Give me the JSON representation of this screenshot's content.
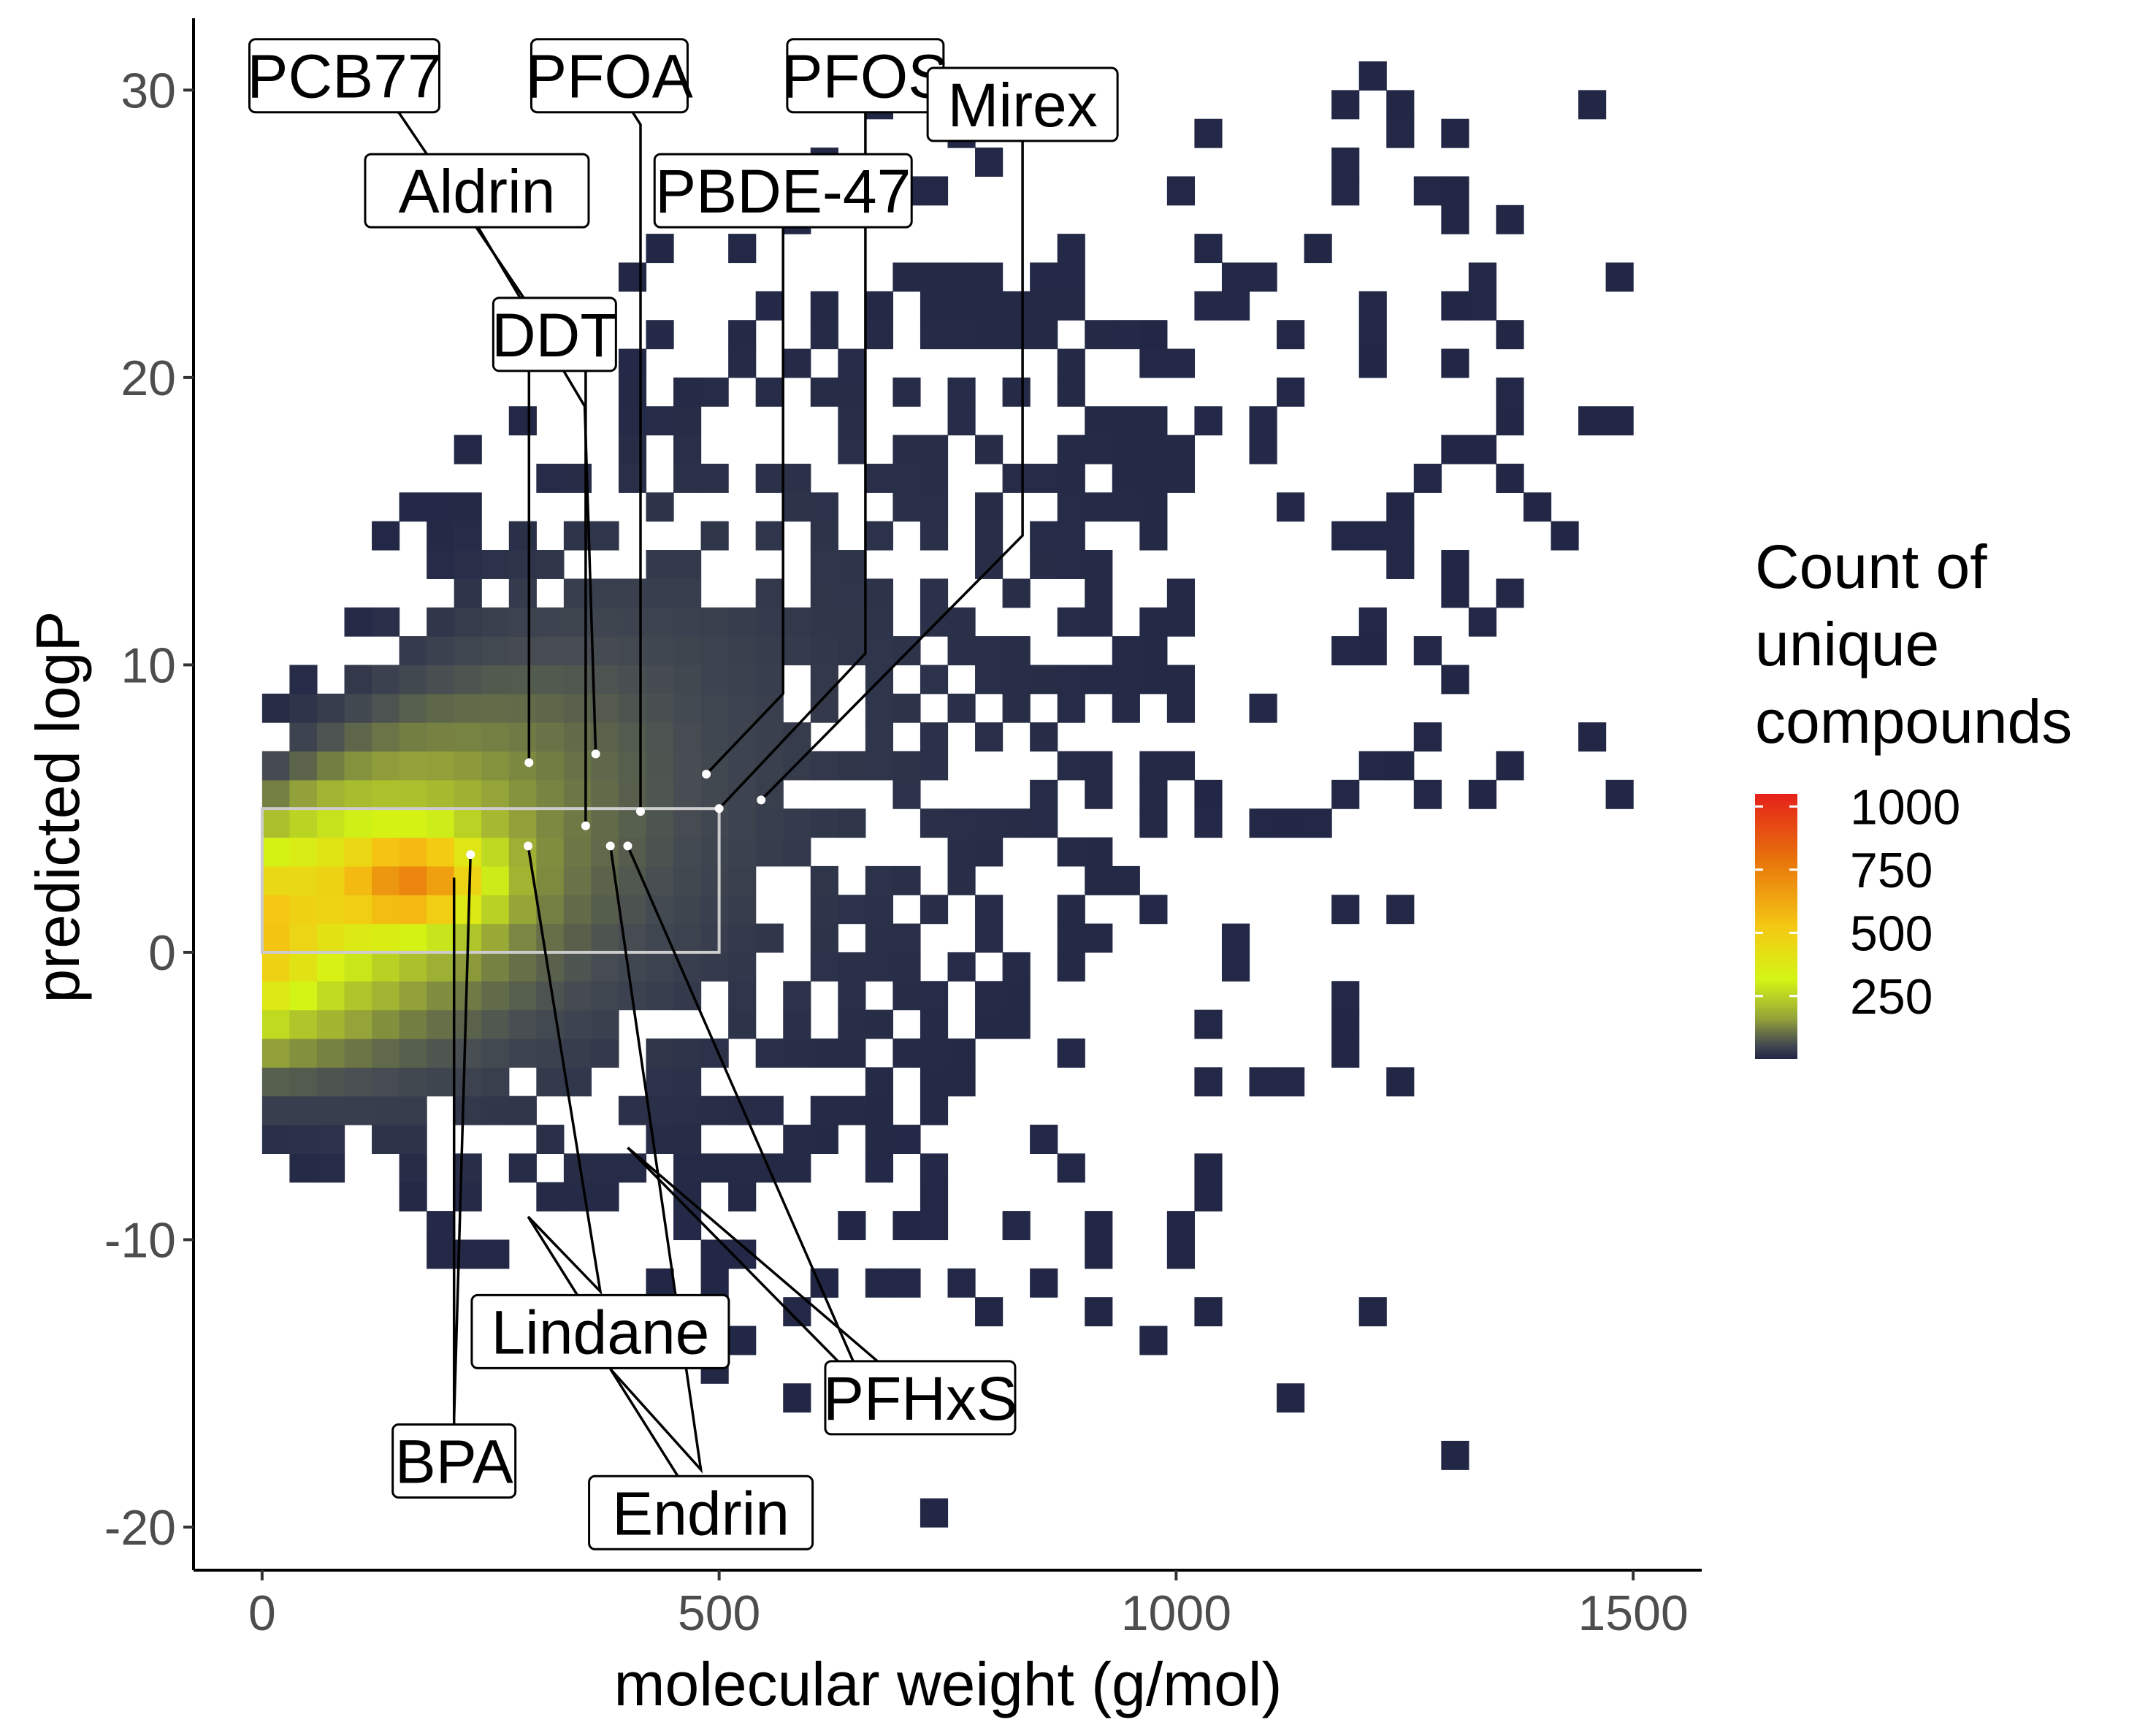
{
  "chart_data": {
    "type": "heatmap",
    "title": "",
    "xlabel": "molecular weight (g/mol)",
    "ylabel": "predicted logP",
    "xlim": [
      -75,
      1575
    ],
    "ylim": [
      -21.5,
      32.5
    ],
    "xticks": [
      0,
      500,
      1000,
      1500
    ],
    "xtick_labels": [
      "0",
      "500",
      "1000",
      "1500"
    ],
    "yticks": [
      -20,
      -10,
      0,
      10,
      20,
      30
    ],
    "ytick_labels": [
      "-20",
      "-10",
      "0",
      "10",
      "20",
      "30"
    ],
    "bin_width_x": 30,
    "bin_width_y": 1.0,
    "grid": false,
    "legend": {
      "title": [
        "Count of",
        "unique",
        "compounds"
      ],
      "position": "right",
      "ticks": [
        250,
        500,
        750,
        1000
      ],
      "tick_labels": [
        "250",
        "500",
        "750",
        "1000"
      ],
      "range": [
        1,
        1050
      ],
      "colors": [
        "#212745",
        "#474d52",
        "#9aaa36",
        "#d3f515",
        "#f5c813",
        "#e8740c",
        "#e5211a"
      ]
    },
    "highlight_box": {
      "x": [
        0,
        500
      ],
      "y": [
        0,
        5
      ],
      "color": "#cccccc"
    },
    "compounds": [
      {
        "name": "PCB77",
        "x": 292,
        "y": 6.6,
        "label_x": 90,
        "label_y": 30.5,
        "via": [
          [
            150,
            29.2
          ],
          [
            292,
            22.5
          ]
        ]
      },
      {
        "name": "Aldrin",
        "x": 365,
        "y": 6.9,
        "label_x": 235,
        "label_y": 26.5,
        "via": [
          [
            235,
            25.3
          ],
          [
            353,
            19.0
          ]
        ]
      },
      {
        "name": "DDT",
        "x": 354,
        "y": 4.4,
        "label_x": 320,
        "label_y": 21.5,
        "via": [
          [
            354,
            20.3
          ]
        ]
      },
      {
        "name": "PFOA",
        "x": 414,
        "y": 4.9,
        "label_x": 380,
        "label_y": 30.5,
        "via": [
          [
            414,
            28.8
          ],
          [
            414,
            15.0
          ]
        ]
      },
      {
        "name": "PBDE-47",
        "x": 486,
        "y": 6.2,
        "label_x": 570,
        "label_y": 26.5,
        "via": [
          [
            570,
            25.3
          ],
          [
            570,
            9.0
          ]
        ]
      },
      {
        "name": "PFOS",
        "x": 500,
        "y": 5.0,
        "label_x": 660,
        "label_y": 30.5,
        "via": [
          [
            660,
            29.2
          ],
          [
            660,
            10.4
          ]
        ]
      },
      {
        "name": "Mirex",
        "x": 546,
        "y": 5.3,
        "label_x": 832,
        "label_y": 29.5,
        "via": [
          [
            832,
            28.0
          ],
          [
            832,
            14.5
          ]
        ]
      },
      {
        "name": "BPA",
        "x": 228,
        "y": 3.4,
        "label_x": 210,
        "label_y": -17.7,
        "via": [
          [
            210,
            2.6
          ],
          [
            210,
            -16.2
          ]
        ]
      },
      {
        "name": "Lindane",
        "x": 291,
        "y": 3.7,
        "label_x": 370,
        "label_y": -13.2,
        "via": [
          [
            291,
            -9.2
          ],
          [
            370,
            -11.8
          ]
        ]
      },
      {
        "name": "Endrin",
        "x": 381,
        "y": 3.7,
        "label_x": 480,
        "label_y": -19.5,
        "via": [
          [
            381,
            -14.5
          ],
          [
            480,
            -18.0
          ]
        ]
      },
      {
        "name": "PFHxS",
        "x": 400,
        "y": 3.7,
        "label_x": 720,
        "label_y": -15.5,
        "via": [
          [
            400,
            -6.8
          ],
          [
            660,
            -15.2
          ]
        ]
      }
    ]
  }
}
